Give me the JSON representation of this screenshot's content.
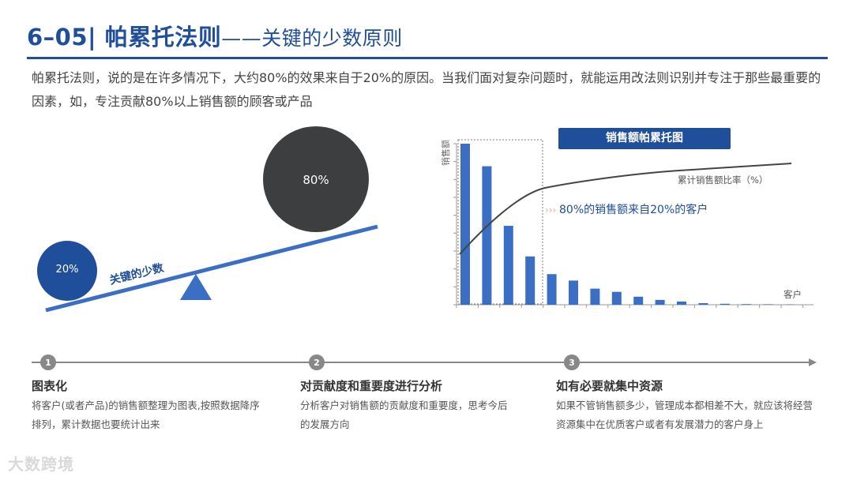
{
  "header": {
    "number": "6–05|",
    "title": "帕累托法则",
    "dash": "——",
    "subtitle": "关键的少数原则"
  },
  "intro": "帕累托法则，说的是在许多情况下，大约80%的效果来自于20%的原因。当我们面对复杂问题时，就能运用改法则识别并专注于那些最重要的因素，如，专注贡献80%以上销售额的顾客或产品",
  "seesaw": {
    "small_circle": "20%",
    "big_circle": "80%",
    "beam_label": "关键的少数"
  },
  "chart": {
    "box_title": "销售额帕累托图",
    "y_label": "销售额",
    "curve_label": "累计销售额比率（%）",
    "highlight_label": "80%的销售额来自20%的客户",
    "x_label": "客户"
  },
  "chart_data": {
    "type": "bar",
    "title": "销售额帕累托图",
    "ylabel": "销售额",
    "xlabel": "客户",
    "values": [
      100,
      86,
      49,
      30,
      19,
      15,
      10,
      8,
      5,
      3,
      2,
      1,
      0.6,
      0.4,
      0.3,
      0.2
    ],
    "cumulative_series_name": "累计销售额比率（%）",
    "annotation": "80%的销售额来自20%的客户"
  },
  "steps": [
    {
      "num": "1",
      "title": "图表化",
      "desc": "将客户(或者产品)的销售额整理为图表,按照数据降序排列，累计数据也要统计出来"
    },
    {
      "num": "2",
      "title": "对贡献度和重要度进行分析",
      "desc": "分析客户对销售额的贡献度和重要度，思考今后的发展方向"
    },
    {
      "num": "3",
      "title": "如有必要就集中资源",
      "desc": "如果不管销售额多少，管理成本都相差不大，就应该将经营资源集中在优质客户或者有发展潜力的客户身上"
    }
  ],
  "logo": "大数跨境",
  "colors": {
    "primary": "#1f4e9b",
    "bar": "#3a6fc4",
    "dark_circle": "#3d3e40"
  }
}
